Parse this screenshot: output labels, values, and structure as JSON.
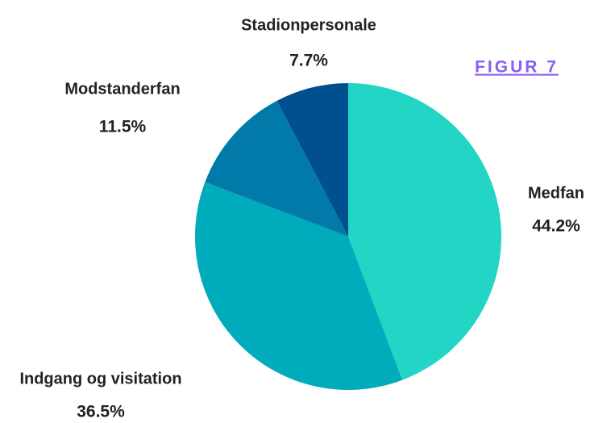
{
  "chart_data": {
    "type": "pie",
    "title": "FIGUR 7",
    "categories": [
      "Medfan",
      "Indgang og visitation",
      "Modstanderfan",
      "Stadionpersonale"
    ],
    "values": [
      44.2,
      36.5,
      11.5,
      7.7
    ],
    "value_labels": [
      "44.2%",
      "36.5%",
      "11.5%",
      "7.7%"
    ],
    "colors": [
      "#22d5c5",
      "#00abbc",
      "#0179a9",
      "#00508f"
    ]
  }
}
